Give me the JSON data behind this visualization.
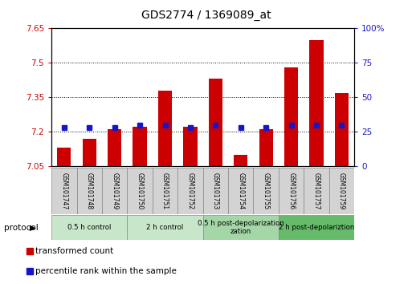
{
  "title": "GDS2774 / 1369089_at",
  "samples": [
    "GSM101747",
    "GSM101748",
    "GSM101749",
    "GSM101750",
    "GSM101751",
    "GSM101752",
    "GSM101753",
    "GSM101754",
    "GSM101755",
    "GSM101756",
    "GSM101757",
    "GSM101759"
  ],
  "transformed_count": [
    7.13,
    7.17,
    7.21,
    7.22,
    7.38,
    7.22,
    7.43,
    7.1,
    7.21,
    7.48,
    7.6,
    7.37
  ],
  "percentile_rank_pct": [
    28,
    28,
    28,
    30,
    30,
    28,
    30,
    28,
    28,
    30,
    30,
    30
  ],
  "ymin": 7.05,
  "ymax": 7.65,
  "yticks": [
    7.05,
    7.2,
    7.35,
    7.5,
    7.65
  ],
  "y2ticks": [
    0,
    25,
    50,
    75,
    100
  ],
  "bar_color": "#cc0000",
  "blue_color": "#1515cc",
  "grid_lines": [
    7.2,
    7.35,
    7.5
  ],
  "protocol_groups": [
    {
      "label": "0.5 h control",
      "start": 0,
      "end": 3,
      "color": "#c8e6c9"
    },
    {
      "label": "2 h control",
      "start": 3,
      "end": 6,
      "color": "#c8e6c9"
    },
    {
      "label": "0.5 h post-depolarization\nzation",
      "start": 6,
      "end": 9,
      "color": "#a5d6a7"
    },
    {
      "label": "2 h post-depolariztion",
      "start": 9,
      "end": 12,
      "color": "#66bb6a"
    }
  ],
  "protocol_label": "protocol",
  "legend_items": [
    "transformed count",
    "percentile rank within the sample"
  ],
  "bar_width": 0.55,
  "sample_box_color": "#d3d3d3",
  "title_fontsize": 10,
  "axis_fontsize": 7.5,
  "label_fontsize": 5.5
}
